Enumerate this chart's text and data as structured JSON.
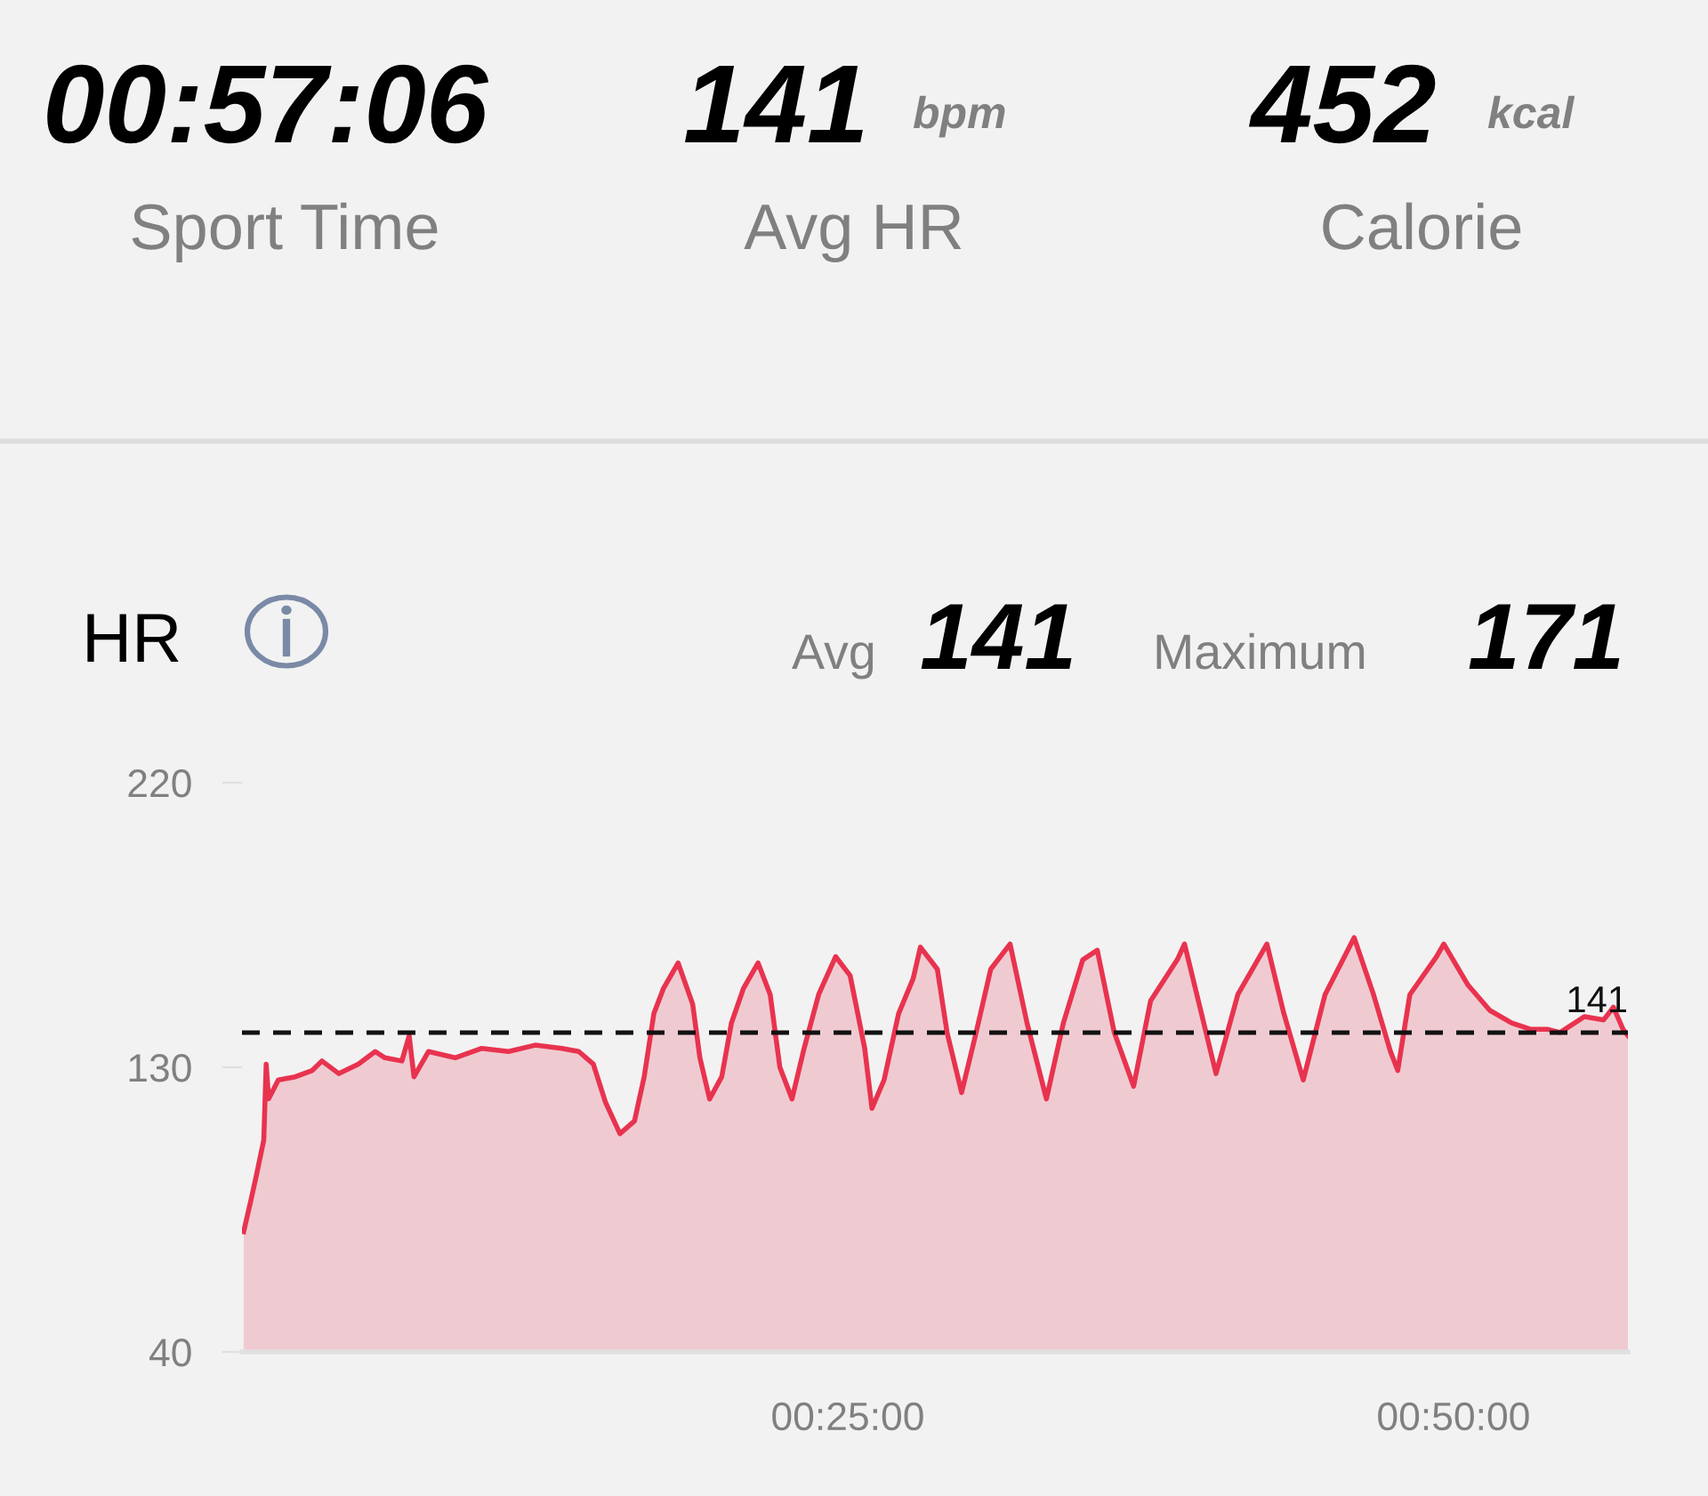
{
  "chart_data": {
    "type": "area",
    "title": "HR",
    "annotations": [
      "00:57:06",
      "Sport Time",
      "141",
      "bpm",
      "Avg HR",
      "452",
      "kcal",
      "Calorie",
      "Avg",
      "141",
      "Maximum",
      "171"
    ],
    "x": [
      0.07,
      0.37,
      0.6,
      0.9,
      1.0,
      1.1,
      1.5,
      2.2,
      2.9,
      3.3,
      4.0,
      4.8,
      5.5,
      5.9,
      6.6,
      6.9,
      7.1,
      7.7,
      8.8,
      9.9,
      11.0,
      12.1,
      13.2,
      13.9,
      14.5,
      15.0,
      15.6,
      16.2,
      16.6,
      17.0,
      17.4,
      18.0,
      18.6,
      18.9,
      19.3,
      19.8,
      20.2,
      20.7,
      21.3,
      21.8,
      22.2,
      22.7,
      23.2,
      23.8,
      24.5,
      25.1,
      25.7,
      26.0,
      26.5,
      27.1,
      27.7,
      28.0,
      28.7,
      29.1,
      29.7,
      30.3,
      30.9,
      31.7,
      32.4,
      33.2,
      33.9,
      34.7,
      35.3,
      36.0,
      36.8,
      37.5,
      38.6,
      38.9,
      39.6,
      40.2,
      41.1,
      42.3,
      43.0,
      43.8,
      44.7,
      45.9,
      46.7,
      47.4,
      47.7,
      48.2,
      49.3,
      49.6,
      50.6,
      51.5,
      52.4,
      53.2,
      53.9,
      54.4,
      55.4,
      56.2,
      56.6,
      57.0,
      57.2
    ],
    "series": [
      {
        "color": "#e8334f",
        "values": [
          78,
          88,
          96,
          107,
          131,
          120,
          126,
          127,
          129,
          132,
          128,
          131,
          135,
          133,
          132,
          140,
          127,
          135,
          133,
          136,
          135,
          137,
          136,
          135,
          131,
          119,
          109,
          113,
          127,
          147,
          155,
          163,
          150,
          133,
          120,
          127,
          144,
          155,
          163,
          153,
          130,
          120,
          136,
          153,
          165,
          159,
          136,
          117,
          126,
          147,
          158,
          168,
          161,
          141,
          122,
          141,
          161,
          169,
          144,
          120,
          144,
          164,
          167,
          141,
          124,
          151,
          164,
          169,
          147,
          128,
          153,
          169,
          147,
          126,
          153,
          171,
          153,
          135,
          129,
          153,
          165,
          169,
          156,
          148,
          144,
          142,
          142,
          141,
          146,
          145,
          149,
          142,
          140
        ]
      }
    ],
    "xlim": [
      0,
      57.2
    ],
    "xticks": [
      {
        "value": 25,
        "label": "00:25:00"
      },
      {
        "value": 50,
        "label": "00:50:00"
      }
    ],
    "ylim": [
      40,
      220
    ],
    "yticks": [
      40,
      130,
      220
    ],
    "ref_lines": [
      {
        "axis": "y",
        "value": 141,
        "label": "141",
        "color": "#111111",
        "line_style": "dashed"
      }
    ],
    "grid": false,
    "legend": false
  }
}
